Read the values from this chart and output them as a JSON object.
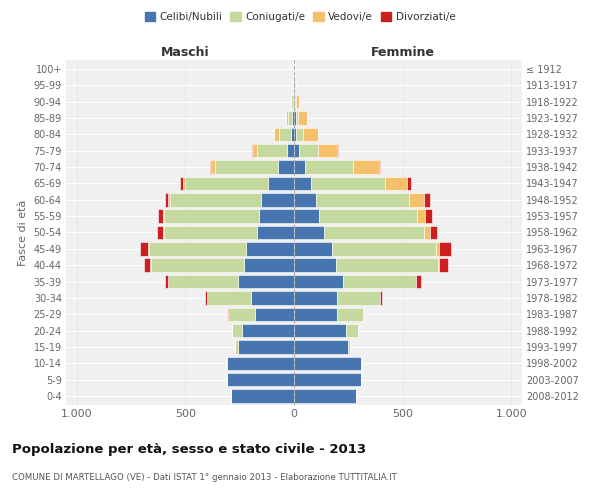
{
  "age_groups": [
    "0-4",
    "5-9",
    "10-14",
    "15-19",
    "20-24",
    "25-29",
    "30-34",
    "35-39",
    "40-44",
    "45-49",
    "50-54",
    "55-59",
    "60-64",
    "65-69",
    "70-74",
    "75-79",
    "80-84",
    "85-89",
    "90-94",
    "95-99",
    "100+"
  ],
  "birth_years": [
    "2008-2012",
    "2003-2007",
    "1998-2002",
    "1993-1997",
    "1988-1992",
    "1983-1987",
    "1978-1982",
    "1973-1977",
    "1968-1972",
    "1963-1967",
    "1958-1962",
    "1953-1957",
    "1948-1952",
    "1943-1947",
    "1938-1942",
    "1933-1937",
    "1928-1932",
    "1923-1927",
    "1918-1922",
    "1913-1917",
    "≤ 1912"
  ],
  "maschi": {
    "celibi": [
      290,
      310,
      310,
      260,
      240,
      180,
      200,
      260,
      230,
      220,
      170,
      160,
      150,
      120,
      75,
      30,
      15,
      8,
      5,
      2,
      2
    ],
    "coniugati": [
      0,
      0,
      2,
      10,
      45,
      120,
      200,
      320,
      430,
      450,
      430,
      440,
      420,
      380,
      290,
      140,
      55,
      20,
      8,
      2,
      1
    ],
    "vedovi": [
      0,
      0,
      0,
      0,
      0,
      0,
      0,
      0,
      1,
      2,
      3,
      5,
      8,
      10,
      15,
      20,
      20,
      8,
      2,
      0,
      0
    ],
    "divorziati": [
      0,
      0,
      0,
      0,
      2,
      3,
      8,
      15,
      30,
      35,
      30,
      20,
      18,
      15,
      8,
      5,
      2,
      0,
      0,
      0,
      0
    ]
  },
  "femmine": {
    "nubili": [
      285,
      310,
      310,
      250,
      240,
      200,
      200,
      225,
      195,
      175,
      140,
      115,
      100,
      80,
      50,
      25,
      10,
      10,
      5,
      3,
      2
    ],
    "coniugate": [
      0,
      0,
      2,
      10,
      55,
      120,
      195,
      335,
      470,
      480,
      460,
      450,
      430,
      340,
      220,
      85,
      30,
      10,
      5,
      2,
      1
    ],
    "vedove": [
      0,
      0,
      0,
      0,
      0,
      1,
      2,
      3,
      5,
      15,
      25,
      40,
      70,
      100,
      120,
      90,
      70,
      40,
      15,
      2,
      0
    ],
    "divorziate": [
      0,
      0,
      0,
      0,
      2,
      3,
      8,
      20,
      40,
      55,
      35,
      30,
      28,
      20,
      8,
      3,
      2,
      0,
      0,
      0,
      0
    ]
  },
  "colors": {
    "celibi_nubili": "#4775b0",
    "coniugati": "#c5d89e",
    "vedovi": "#f5c06a",
    "divorziati": "#cc2020"
  },
  "title": "Popolazione per età, sesso e stato civile - 2013",
  "subtitle": "COMUNE DI MARTELLAGO (VE) - Dati ISTAT 1° gennaio 2013 - Elaborazione TUTTITALIA.IT",
  "xlabel_left": "Maschi",
  "xlabel_right": "Femmine",
  "ylabel_left": "Fasce di età",
  "xlim": 1050,
  "plot_bg": "#f0f0f0",
  "fig_bg": "#ffffff",
  "grid_color": "#dddddd",
  "bar_edge_color": "#ffffff",
  "bar_linewidth": 0.4
}
